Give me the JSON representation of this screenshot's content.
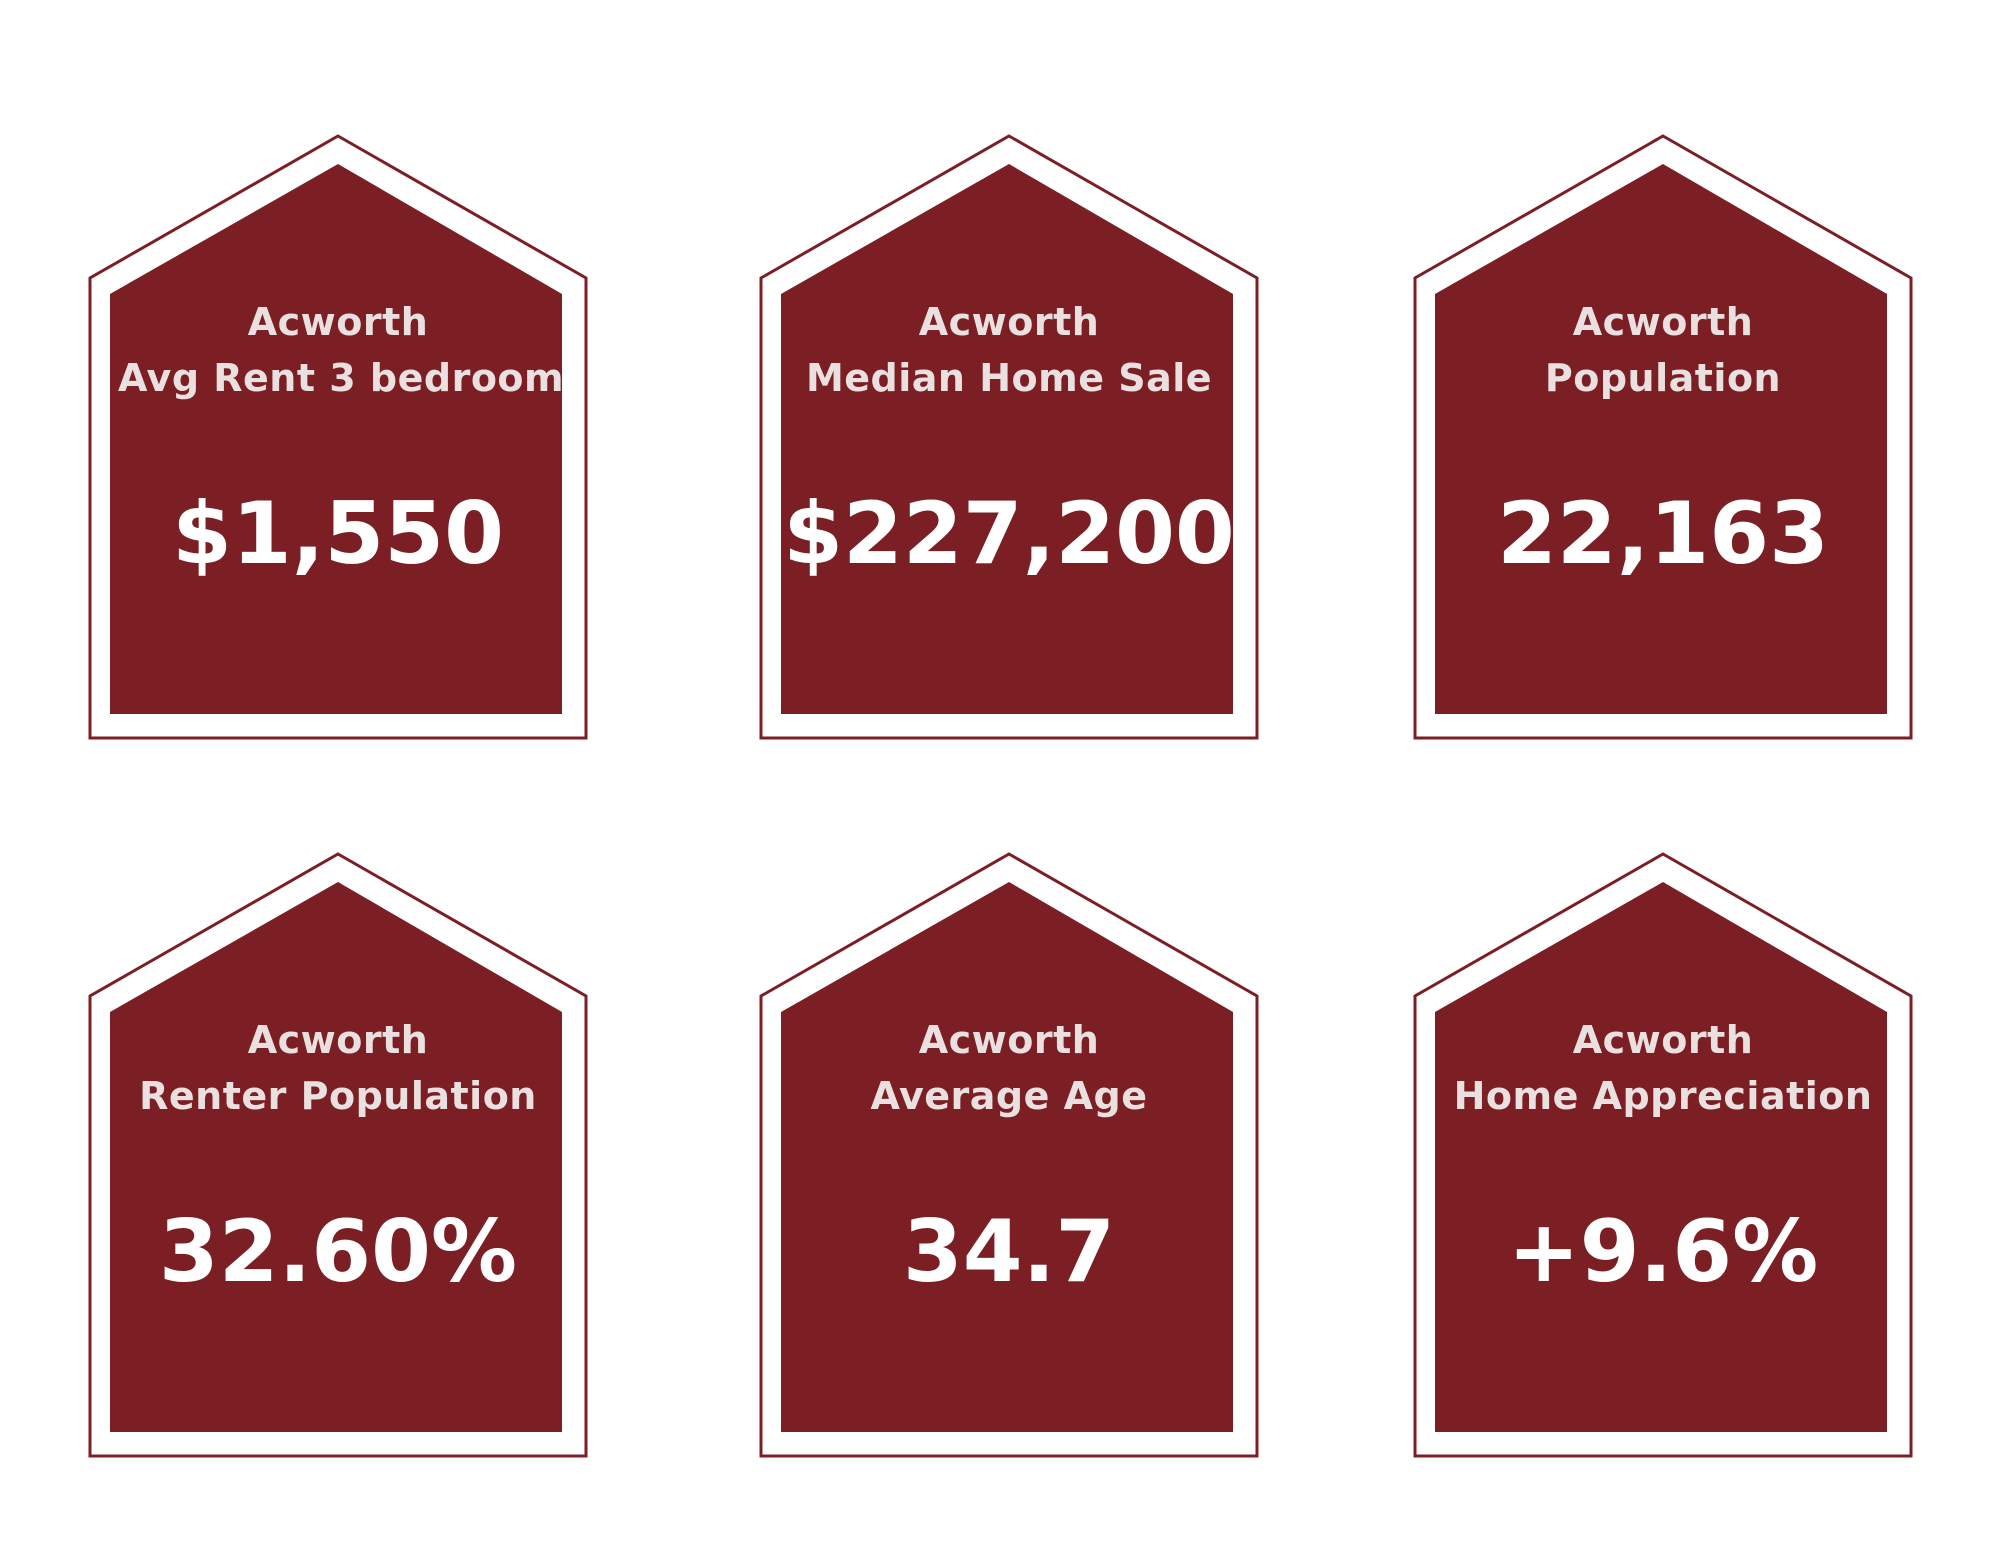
{
  "colors": {
    "house_fill": "#7b1f24",
    "house_outline": "#7b1f24",
    "caption_text": "#ebe0e0",
    "value_text": "#ffffff",
    "background": "#ffffff"
  },
  "stats": [
    {
      "city": "Acworth",
      "label": "Avg Rent 3 bedroom",
      "value": "$1,550"
    },
    {
      "city": "Acworth",
      "label": "Median Home Sale",
      "value": "$227,200"
    },
    {
      "city": "Acworth",
      "label": "Population",
      "value": "22,163"
    },
    {
      "city": "Acworth",
      "label": "Renter Population",
      "value": "32.60%"
    },
    {
      "city": "Acworth",
      "label": "Average Age",
      "value": "34.7"
    },
    {
      "city": "Acworth",
      "label": "Home Appreciation",
      "value": "+9.6%"
    }
  ]
}
